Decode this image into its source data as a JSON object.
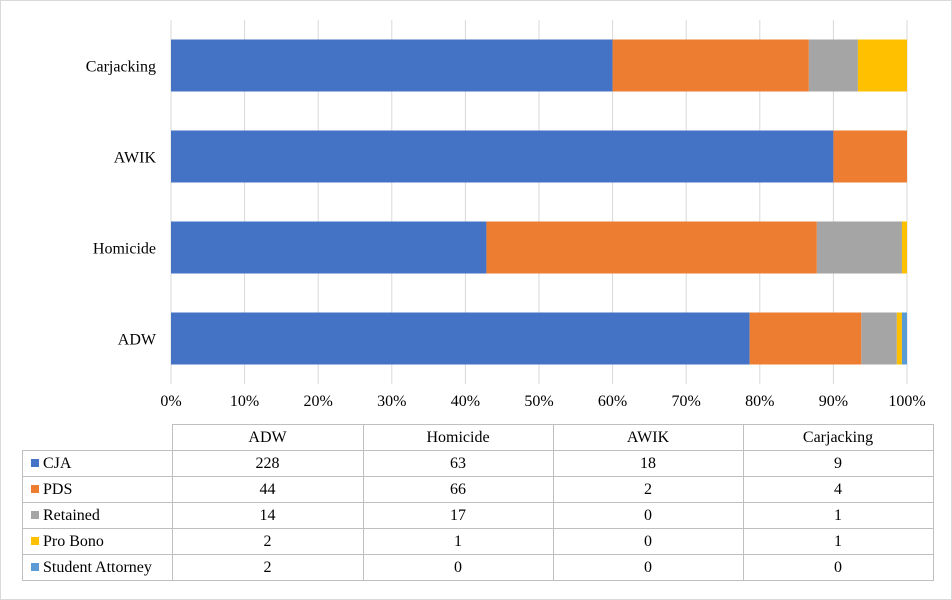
{
  "chart_data": {
    "type": "bar",
    "orientation": "horizontal",
    "stacked": "percent",
    "categories": [
      "ADW",
      "Homicide",
      "AWIK",
      "Carjacking"
    ],
    "series": [
      {
        "name": "CJA",
        "color": "#4472c4",
        "values": [
          228,
          63,
          18,
          9
        ]
      },
      {
        "name": "PDS",
        "color": "#ed7d31",
        "values": [
          44,
          66,
          2,
          4
        ]
      },
      {
        "name": "Retained",
        "color": "#a5a5a5",
        "values": [
          14,
          17,
          0,
          1
        ]
      },
      {
        "name": "Pro Bono",
        "color": "#ffc000",
        "values": [
          2,
          1,
          0,
          1
        ]
      },
      {
        "name": "Student Attorney",
        "color": "#5b9bd5",
        "values": [
          2,
          0,
          0,
          0
        ]
      }
    ],
    "xticks": [
      "0%",
      "10%",
      "20%",
      "30%",
      "40%",
      "50%",
      "60%",
      "70%",
      "80%",
      "90%",
      "100%"
    ],
    "xlim": [
      0,
      100
    ],
    "grid": true,
    "legend": "data-table"
  }
}
